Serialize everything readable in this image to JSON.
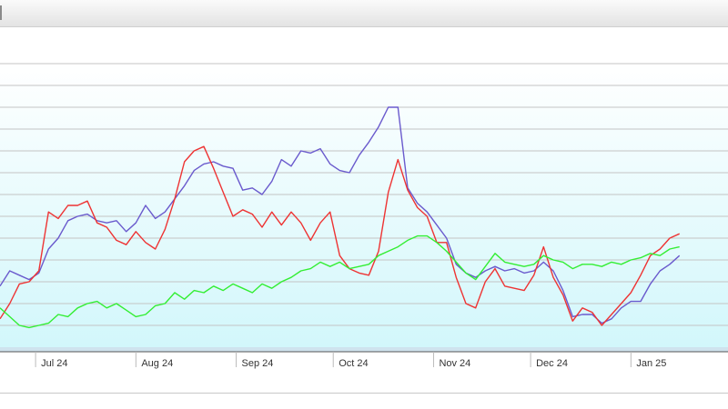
{
  "chart_data": {
    "type": "line",
    "x_axis": {
      "type": "date",
      "range": [
        "2024-06-20",
        "2025-01-31"
      ],
      "ticks": [
        {
          "date": "2024-07-01",
          "label": "Jul 24"
        },
        {
          "date": "2024-08-01",
          "label": "Aug 24"
        },
        {
          "date": "2024-09-01",
          "label": "Sep 24"
        },
        {
          "date": "2024-10-01",
          "label": "Oct 24"
        },
        {
          "date": "2024-11-01",
          "label": "Nov 24"
        },
        {
          "date": "2024-12-01",
          "label": "Dec 24"
        },
        {
          "date": "2025-01-01",
          "label": "Jan 25"
        }
      ]
    },
    "y_axis": {
      "range": [
        0,
        13
      ],
      "gridlines": [
        1,
        2,
        3,
        4,
        5,
        6,
        7,
        8,
        9,
        10,
        11,
        12,
        13
      ],
      "tick_labels_visible": false
    },
    "grid": true,
    "legend": "none",
    "series": [
      {
        "color": "#6a5acd",
        "points": [
          [
            "2024-06-20",
            2.8
          ],
          [
            "2024-06-23",
            3.5
          ],
          [
            "2024-06-26",
            3.3
          ],
          [
            "2024-06-29",
            3.1
          ],
          [
            "2024-07-02",
            3.4
          ],
          [
            "2024-07-05",
            4.5
          ],
          [
            "2024-07-08",
            5.0
          ],
          [
            "2024-07-11",
            5.8
          ],
          [
            "2024-07-14",
            6.0
          ],
          [
            "2024-07-17",
            6.1
          ],
          [
            "2024-07-20",
            5.8
          ],
          [
            "2024-07-23",
            5.7
          ],
          [
            "2024-07-26",
            5.8
          ],
          [
            "2024-07-29",
            5.3
          ],
          [
            "2024-08-01",
            5.7
          ],
          [
            "2024-08-04",
            6.5
          ],
          [
            "2024-08-07",
            5.9
          ],
          [
            "2024-08-10",
            6.2
          ],
          [
            "2024-08-13",
            6.8
          ],
          [
            "2024-08-16",
            7.4
          ],
          [
            "2024-08-19",
            8.1
          ],
          [
            "2024-08-22",
            8.4
          ],
          [
            "2024-08-25",
            8.5
          ],
          [
            "2024-08-28",
            8.3
          ],
          [
            "2024-08-31",
            8.2
          ],
          [
            "2024-09-03",
            7.2
          ],
          [
            "2024-09-06",
            7.3
          ],
          [
            "2024-09-09",
            7.0
          ],
          [
            "2024-09-12",
            7.6
          ],
          [
            "2024-09-15",
            8.6
          ],
          [
            "2024-09-18",
            8.3
          ],
          [
            "2024-09-21",
            9.0
          ],
          [
            "2024-09-24",
            8.9
          ],
          [
            "2024-09-27",
            9.1
          ],
          [
            "2024-09-30",
            8.4
          ],
          [
            "2024-10-03",
            8.1
          ],
          [
            "2024-10-06",
            8.0
          ],
          [
            "2024-10-09",
            8.8
          ],
          [
            "2024-10-12",
            9.4
          ],
          [
            "2024-10-15",
            10.1
          ],
          [
            "2024-10-18",
            11.0
          ],
          [
            "2024-10-21",
            11.0
          ],
          [
            "2024-10-24",
            7.3
          ],
          [
            "2024-10-27",
            6.6
          ],
          [
            "2024-10-30",
            6.2
          ],
          [
            "2024-11-02",
            5.6
          ],
          [
            "2024-11-05",
            5.0
          ],
          [
            "2024-11-08",
            3.8
          ],
          [
            "2024-11-11",
            3.4
          ],
          [
            "2024-11-14",
            3.2
          ],
          [
            "2024-11-17",
            3.5
          ],
          [
            "2024-11-20",
            3.7
          ],
          [
            "2024-11-23",
            3.5
          ],
          [
            "2024-11-26",
            3.6
          ],
          [
            "2024-11-29",
            3.4
          ],
          [
            "2024-12-02",
            3.5
          ],
          [
            "2024-12-05",
            3.9
          ],
          [
            "2024-12-08",
            3.5
          ],
          [
            "2024-12-11",
            2.6
          ],
          [
            "2024-12-14",
            1.4
          ],
          [
            "2024-12-17",
            1.5
          ],
          [
            "2024-12-20",
            1.5
          ],
          [
            "2024-12-23",
            1.1
          ],
          [
            "2024-12-26",
            1.3
          ],
          [
            "2024-12-29",
            1.8
          ],
          [
            "2025-01-01",
            2.1
          ],
          [
            "2025-01-04",
            2.1
          ],
          [
            "2025-01-07",
            2.9
          ],
          [
            "2025-01-10",
            3.5
          ],
          [
            "2025-01-13",
            3.8
          ],
          [
            "2025-01-16",
            4.2
          ]
        ]
      },
      {
        "color": "#ee3333",
        "points": [
          [
            "2024-06-20",
            1.3
          ],
          [
            "2024-06-23",
            2.0
          ],
          [
            "2024-06-26",
            2.9
          ],
          [
            "2024-06-29",
            3.0
          ],
          [
            "2024-07-02",
            3.5
          ],
          [
            "2024-07-05",
            6.2
          ],
          [
            "2024-07-08",
            5.9
          ],
          [
            "2024-07-11",
            6.5
          ],
          [
            "2024-07-14",
            6.5
          ],
          [
            "2024-07-17",
            6.7
          ],
          [
            "2024-07-20",
            5.7
          ],
          [
            "2024-07-23",
            5.5
          ],
          [
            "2024-07-26",
            4.9
          ],
          [
            "2024-07-29",
            4.7
          ],
          [
            "2024-08-01",
            5.3
          ],
          [
            "2024-08-04",
            4.8
          ],
          [
            "2024-08-07",
            4.5
          ],
          [
            "2024-08-10",
            5.4
          ],
          [
            "2024-08-13",
            6.8
          ],
          [
            "2024-08-16",
            8.5
          ],
          [
            "2024-08-19",
            9.0
          ],
          [
            "2024-08-22",
            9.2
          ],
          [
            "2024-08-25",
            8.2
          ],
          [
            "2024-08-28",
            7.1
          ],
          [
            "2024-08-31",
            6.0
          ],
          [
            "2024-09-03",
            6.3
          ],
          [
            "2024-09-06",
            6.1
          ],
          [
            "2024-09-09",
            5.5
          ],
          [
            "2024-09-12",
            6.2
          ],
          [
            "2024-09-15",
            5.6
          ],
          [
            "2024-09-18",
            6.2
          ],
          [
            "2024-09-21",
            5.7
          ],
          [
            "2024-09-24",
            4.9
          ],
          [
            "2024-09-27",
            5.7
          ],
          [
            "2024-09-30",
            6.2
          ],
          [
            "2024-10-03",
            4.2
          ],
          [
            "2024-10-06",
            3.6
          ],
          [
            "2024-10-09",
            3.4
          ],
          [
            "2024-10-12",
            3.3
          ],
          [
            "2024-10-15",
            4.4
          ],
          [
            "2024-10-18",
            7.1
          ],
          [
            "2024-10-21",
            8.6
          ],
          [
            "2024-10-24",
            7.2
          ],
          [
            "2024-10-27",
            6.4
          ],
          [
            "2024-10-30",
            6.0
          ],
          [
            "2024-11-02",
            4.8
          ],
          [
            "2024-11-05",
            4.8
          ],
          [
            "2024-11-08",
            3.2
          ],
          [
            "2024-11-11",
            2.0
          ],
          [
            "2024-11-14",
            1.8
          ],
          [
            "2024-11-17",
            3.0
          ],
          [
            "2024-11-20",
            3.6
          ],
          [
            "2024-11-23",
            2.8
          ],
          [
            "2024-11-26",
            2.7
          ],
          [
            "2024-11-29",
            2.6
          ],
          [
            "2024-12-02",
            3.3
          ],
          [
            "2024-12-05",
            4.6
          ],
          [
            "2024-12-08",
            3.2
          ],
          [
            "2024-12-11",
            2.4
          ],
          [
            "2024-12-14",
            1.2
          ],
          [
            "2024-12-17",
            1.8
          ],
          [
            "2024-12-20",
            1.6
          ],
          [
            "2024-12-23",
            1.0
          ],
          [
            "2024-12-26",
            1.5
          ],
          [
            "2024-12-29",
            2.0
          ],
          [
            "2025-01-01",
            2.5
          ],
          [
            "2025-01-04",
            3.3
          ],
          [
            "2025-01-07",
            4.2
          ],
          [
            "2025-01-10",
            4.5
          ],
          [
            "2025-01-13",
            5.0
          ],
          [
            "2025-01-16",
            5.2
          ]
        ]
      },
      {
        "color": "#33ee33",
        "points": [
          [
            "2024-06-20",
            1.8
          ],
          [
            "2024-06-23",
            1.4
          ],
          [
            "2024-06-26",
            1.0
          ],
          [
            "2024-06-29",
            0.9
          ],
          [
            "2024-07-02",
            1.0
          ],
          [
            "2024-07-05",
            1.1
          ],
          [
            "2024-07-08",
            1.5
          ],
          [
            "2024-07-11",
            1.4
          ],
          [
            "2024-07-14",
            1.8
          ],
          [
            "2024-07-17",
            2.0
          ],
          [
            "2024-07-20",
            2.1
          ],
          [
            "2024-07-23",
            1.8
          ],
          [
            "2024-07-26",
            2.0
          ],
          [
            "2024-07-29",
            1.7
          ],
          [
            "2024-08-01",
            1.4
          ],
          [
            "2024-08-04",
            1.5
          ],
          [
            "2024-08-07",
            1.9
          ],
          [
            "2024-08-10",
            2.0
          ],
          [
            "2024-08-13",
            2.5
          ],
          [
            "2024-08-16",
            2.2
          ],
          [
            "2024-08-19",
            2.6
          ],
          [
            "2024-08-22",
            2.5
          ],
          [
            "2024-08-25",
            2.8
          ],
          [
            "2024-08-28",
            2.6
          ],
          [
            "2024-08-31",
            2.9
          ],
          [
            "2024-09-03",
            2.7
          ],
          [
            "2024-09-06",
            2.5
          ],
          [
            "2024-09-09",
            2.9
          ],
          [
            "2024-09-12",
            2.7
          ],
          [
            "2024-09-15",
            3.0
          ],
          [
            "2024-09-18",
            3.2
          ],
          [
            "2024-09-21",
            3.5
          ],
          [
            "2024-09-24",
            3.6
          ],
          [
            "2024-09-27",
            3.9
          ],
          [
            "2024-09-30",
            3.7
          ],
          [
            "2024-10-03",
            3.9
          ],
          [
            "2024-10-06",
            3.6
          ],
          [
            "2024-10-09",
            3.7
          ],
          [
            "2024-10-12",
            3.8
          ],
          [
            "2024-10-15",
            4.2
          ],
          [
            "2024-10-18",
            4.4
          ],
          [
            "2024-10-21",
            4.6
          ],
          [
            "2024-10-24",
            4.9
          ],
          [
            "2024-10-27",
            5.1
          ],
          [
            "2024-10-30",
            5.1
          ],
          [
            "2024-11-02",
            4.8
          ],
          [
            "2024-11-05",
            4.4
          ],
          [
            "2024-11-08",
            3.9
          ],
          [
            "2024-11-11",
            3.4
          ],
          [
            "2024-11-14",
            3.1
          ],
          [
            "2024-11-17",
            3.7
          ],
          [
            "2024-11-20",
            4.3
          ],
          [
            "2024-11-23",
            3.9
          ],
          [
            "2024-11-26",
            3.8
          ],
          [
            "2024-11-29",
            3.7
          ],
          [
            "2024-12-02",
            3.8
          ],
          [
            "2024-12-05",
            4.2
          ],
          [
            "2024-12-08",
            4.0
          ],
          [
            "2024-12-11",
            3.9
          ],
          [
            "2024-12-14",
            3.6
          ],
          [
            "2024-12-17",
            3.8
          ],
          [
            "2024-12-20",
            3.8
          ],
          [
            "2024-12-23",
            3.7
          ],
          [
            "2024-12-26",
            3.9
          ],
          [
            "2024-12-29",
            3.8
          ],
          [
            "2025-01-01",
            4.0
          ],
          [
            "2025-01-04",
            4.1
          ],
          [
            "2025-01-07",
            4.3
          ],
          [
            "2025-01-10",
            4.2
          ],
          [
            "2025-01-13",
            4.5
          ],
          [
            "2025-01-16",
            4.6
          ]
        ]
      }
    ]
  }
}
